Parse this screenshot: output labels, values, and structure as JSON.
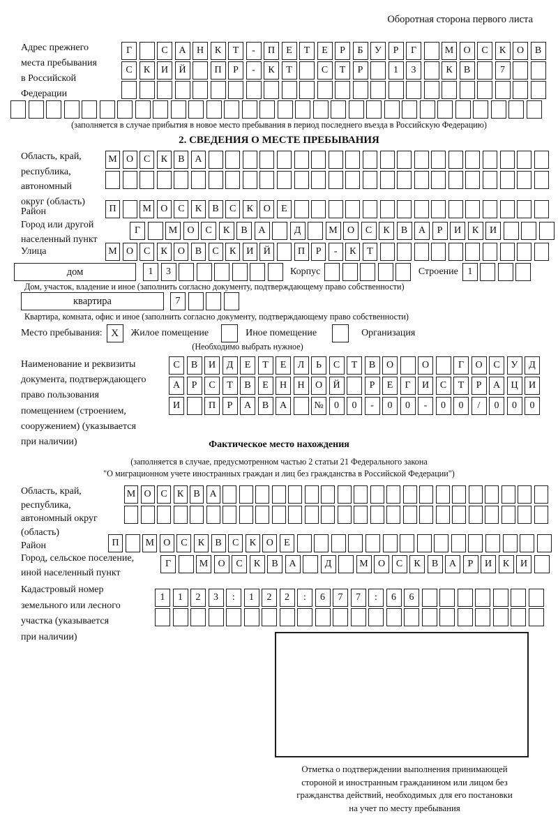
{
  "page": {
    "header_note": "Оборотная сторона первого листа"
  },
  "prev_address": {
    "label": "Адрес прежнего\nместа пребывания\nв Российской\nФедерации",
    "rows": [
      {
        "text": "Г САНКТ-ПЕТЕРБУРГ МОСКОВ",
        "total": 24
      },
      {
        "text": "СКИЙ ПР-КТ СТР 13 КВ 7",
        "total": 24
      },
      {
        "text": "",
        "total": 24
      },
      {
        "text": "",
        "total": 30
      }
    ],
    "note": "(заполняется в случае прибытия в новое место пребывания в период последнего въезда в Российскую Федерацию)"
  },
  "section2": {
    "title": "2. СВЕДЕНИЯ О МЕСТЕ ПРЕБЫВАНИЯ",
    "region": {
      "label": "Область, край,\nреспублика,\nавтономный\nокруг (область)",
      "rows": [
        {
          "text": "МОСКВА",
          "total": 26
        },
        {
          "text": "",
          "total": 26
        }
      ]
    },
    "district": {
      "label": "Район",
      "row": {
        "text": "П МОСКВСКОЕ",
        "total": 26
      }
    },
    "city": {
      "label": "Город или другой\nнаселенный пункт",
      "row": {
        "text": "Г МОСКВА Д МОСКВАРИКИ",
        "total": 24
      }
    },
    "street": {
      "label": "Улица",
      "row": {
        "text": "МОСКОВСКИЙ ПР-КТ",
        "total": 26
      }
    },
    "house": {
      "box_label": "дом",
      "cells": {
        "text": "13",
        "total": 8
      },
      "korpus_label": "Корпус",
      "korpus_cells": {
        "text": "",
        "total": 5
      },
      "stroenie_label": "Строение",
      "stroenie_cells": {
        "text": "1",
        "total": 4
      },
      "caption": "Дом, участок, владение и иное (заполнить согласно документу, подтверждающему право собственности)"
    },
    "apartment": {
      "box_label": "квартира",
      "cells": {
        "text": "7",
        "total": 4
      },
      "caption": "Квартира, комната, офис и иное (заполнить согласно документу, подтверждающему право собственности)"
    },
    "stay_type": {
      "label": "Место пребывания:",
      "options": [
        {
          "label": "Жилое помещение",
          "mark": "X"
        },
        {
          "label": "Иное помещение",
          "mark": ""
        },
        {
          "label": "Организация",
          "mark": ""
        }
      ],
      "note": "(Необходимо выбрать нужное)"
    },
    "document": {
      "label": "Наименование и реквизиты\nдокумента, подтверждающего\nправо пользования\nпомещением (строением,\nсооружением) (указывается\nпри наличии)",
      "rows": [
        {
          "text": "СВИДЕТЕЛЬСТВО О ГОСУД",
          "total": 21
        },
        {
          "text": "АРСТВЕННОЙ РЕГИСТРАЦИ",
          "total": 21
        },
        {
          "text": "И ПРАВА №00-00-00/000",
          "total": 21
        }
      ]
    }
  },
  "actual_location": {
    "title": "Фактическое место нахождения",
    "note": "(заполняется в случае, предусмотренном частью 2 статьи 21 Федерального закона\n\"О миграционном учете иностранных граждан и лиц без гражданства в Российской Федерации\")",
    "region": {
      "label": "Область, край,\nреспублика,\nавтономный округ\n(область)",
      "rows": [
        {
          "text": "МОСКВА",
          "total": 26
        },
        {
          "text": "",
          "total": 26
        }
      ]
    },
    "district": {
      "label": "Район",
      "row": {
        "text": "П МОСКВСКОЕ",
        "total": 26
      }
    },
    "city": {
      "label": "Город, сельское поселение,\nиной населенный пункт",
      "row": {
        "text": "Г МОСКВА Д МОСКВАРИКИ",
        "total": 22
      }
    },
    "cadastral": {
      "label": "Кадастровый номер\nземельного или лесного\nучастка (указывается\nпри наличии)",
      "rows": [
        {
          "text": "1123:122:677:66",
          "total": 22
        },
        {
          "text": "",
          "total": 22
        }
      ]
    }
  },
  "stamp": {
    "caption": "Отметка о подтверждении выполнения принимающей\nстороной и иностранным гражданином или лицом без\nгражданства действий, необходимых для его постановки\nна учет по месту пребывания"
  }
}
